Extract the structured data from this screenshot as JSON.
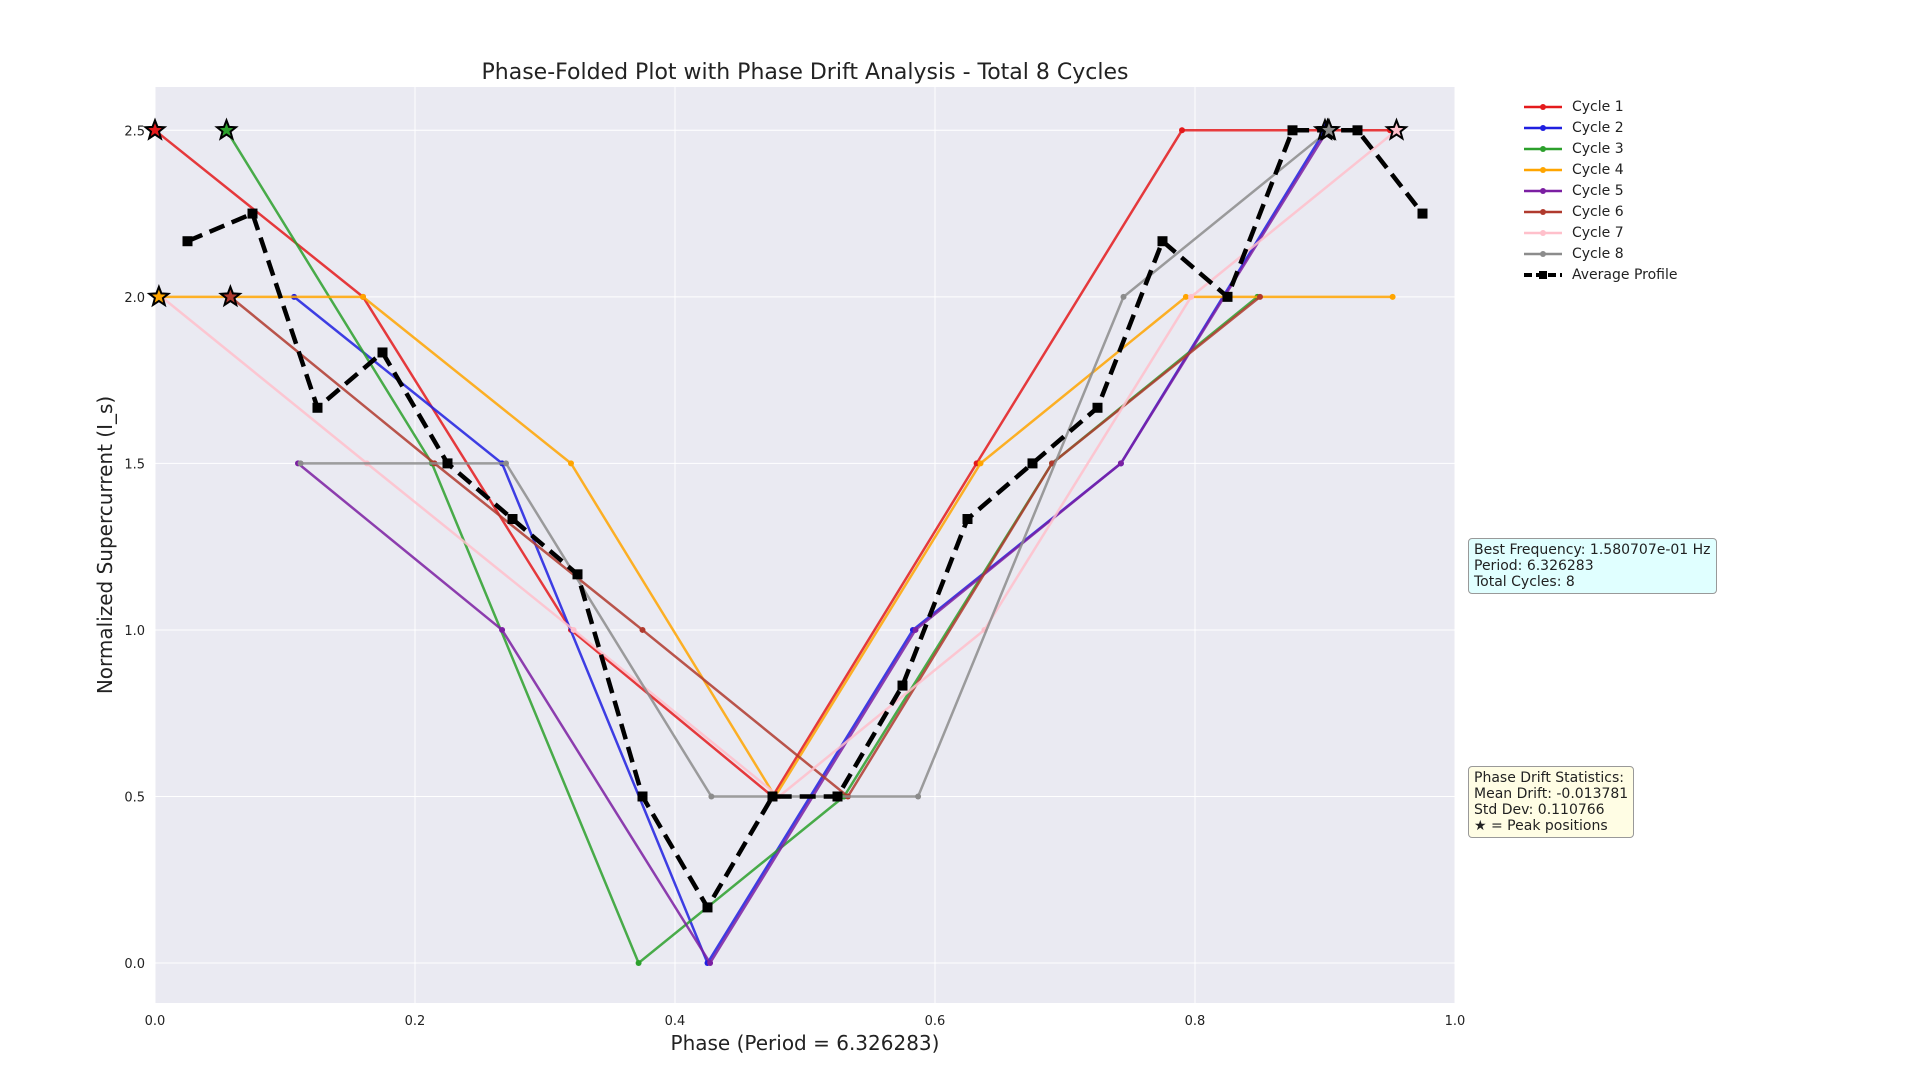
{
  "chart_data": {
    "type": "line",
    "title": "Phase-Folded Plot with Phase Drift Analysis - Total 8 Cycles",
    "xlabel": "Phase (Period = 6.326283)",
    "ylabel": "Normalized Supercurrent (I_s)",
    "xlim": [
      0,
      1
    ],
    "ylim": [
      -0.12,
      2.63
    ],
    "xticks": [
      "0.0",
      "0.2",
      "0.4",
      "0.6",
      "0.8",
      "1.0"
    ],
    "yticks": [
      "0.0",
      "0.5",
      "1.0",
      "1.5",
      "2.0",
      "2.5"
    ],
    "grid": true,
    "legend_position": "top-right",
    "series": [
      {
        "name": "Cycle 1",
        "color": "#e41a1c",
        "x": [
          0.0,
          0.16,
          0.32,
          0.475,
          0.632,
          0.79,
          0.95
        ],
        "y": [
          2.5,
          2.0,
          1.0,
          0.5,
          1.5,
          2.5,
          2.5
        ]
      },
      {
        "name": "Cycle 2",
        "color": "#1f1fe0",
        "x": [
          0.107,
          0.267,
          0.425,
          0.583,
          0.743,
          0.9
        ],
        "y": [
          2.0,
          1.5,
          0.0,
          1.0,
          1.5,
          2.5
        ]
      },
      {
        "name": "Cycle 3",
        "color": "#2ca02c",
        "x": [
          0.055,
          0.213,
          0.372,
          0.53,
          0.69,
          0.848
        ],
        "y": [
          2.5,
          1.5,
          0.0,
          0.5,
          1.5,
          2.0
        ]
      },
      {
        "name": "Cycle 4",
        "color": "#ffa500",
        "x": [
          0.003,
          0.16,
          0.32,
          0.477,
          0.635,
          0.793,
          0.952
        ],
        "y": [
          2.0,
          2.0,
          1.5,
          0.5,
          1.5,
          2.0,
          2.0
        ]
      },
      {
        "name": "Cycle 5",
        "color": "#7b1fa2",
        "x": [
          0.11,
          0.267,
          0.427,
          0.585,
          0.743,
          0.902
        ],
        "y": [
          1.5,
          1.0,
          0.0,
          1.0,
          1.5,
          2.5
        ]
      },
      {
        "name": "Cycle 6",
        "color": "#b03a2e",
        "x": [
          0.058,
          0.215,
          0.375,
          0.533,
          0.69,
          0.85
        ],
        "y": [
          2.0,
          1.5,
          1.0,
          0.5,
          1.5,
          2.0
        ]
      },
      {
        "name": "Cycle 7",
        "color": "#ffc0cb",
        "x": [
          0.005,
          0.163,
          0.322,
          0.48,
          0.638,
          0.797,
          0.955
        ],
        "y": [
          2.0,
          1.5,
          1.0,
          0.5,
          1.0,
          2.0,
          2.5
        ]
      },
      {
        "name": "Cycle 8",
        "color": "#8c8c8c",
        "x": [
          0.112,
          0.27,
          0.428,
          0.587,
          0.745,
          0.903
        ],
        "y": [
          1.5,
          1.5,
          0.5,
          0.5,
          2.0,
          2.5
        ]
      }
    ],
    "average": {
      "name": "Average Profile",
      "color": "#000000",
      "x": [
        0.025,
        0.075,
        0.125,
        0.175,
        0.225,
        0.275,
        0.325,
        0.375,
        0.425,
        0.475,
        0.525,
        0.575,
        0.625,
        0.675,
        0.725,
        0.775,
        0.825,
        0.875,
        0.925,
        0.975
      ],
      "y": [
        2.167,
        2.25,
        1.667,
        1.833,
        1.5,
        1.333,
        1.167,
        0.5,
        0.167,
        0.5,
        0.5,
        0.833,
        1.333,
        1.5,
        1.667,
        2.167,
        2.0,
        2.5,
        2.5,
        2.25
      ]
    },
    "peaks": [
      {
        "x": 0.0,
        "y": 2.5,
        "color": "#e41a1c"
      },
      {
        "x": 0.055,
        "y": 2.5,
        "color": "#2ca02c"
      },
      {
        "x": 0.003,
        "y": 2.0,
        "color": "#ffa500"
      },
      {
        "x": 0.058,
        "y": 2.0,
        "color": "#b03a2e"
      },
      {
        "x": 0.9,
        "y": 2.5,
        "color": "#1f1fe0"
      },
      {
        "x": 0.902,
        "y": 2.5,
        "color": "#7b1fa2"
      },
      {
        "x": 0.903,
        "y": 2.5,
        "color": "#8c8c8c"
      },
      {
        "x": 0.955,
        "y": 2.5,
        "color": "#ffc0cb"
      }
    ]
  },
  "info": {
    "frequency_text": "Best Frequency: 1.580707e-01 Hz\nPeriod: 6.326283\nTotal Cycles: 8",
    "drift_text": "Phase Drift Statistics:\nMean Drift: -0.013781\nStd Dev: 0.110766\n★ = Peak positions"
  }
}
